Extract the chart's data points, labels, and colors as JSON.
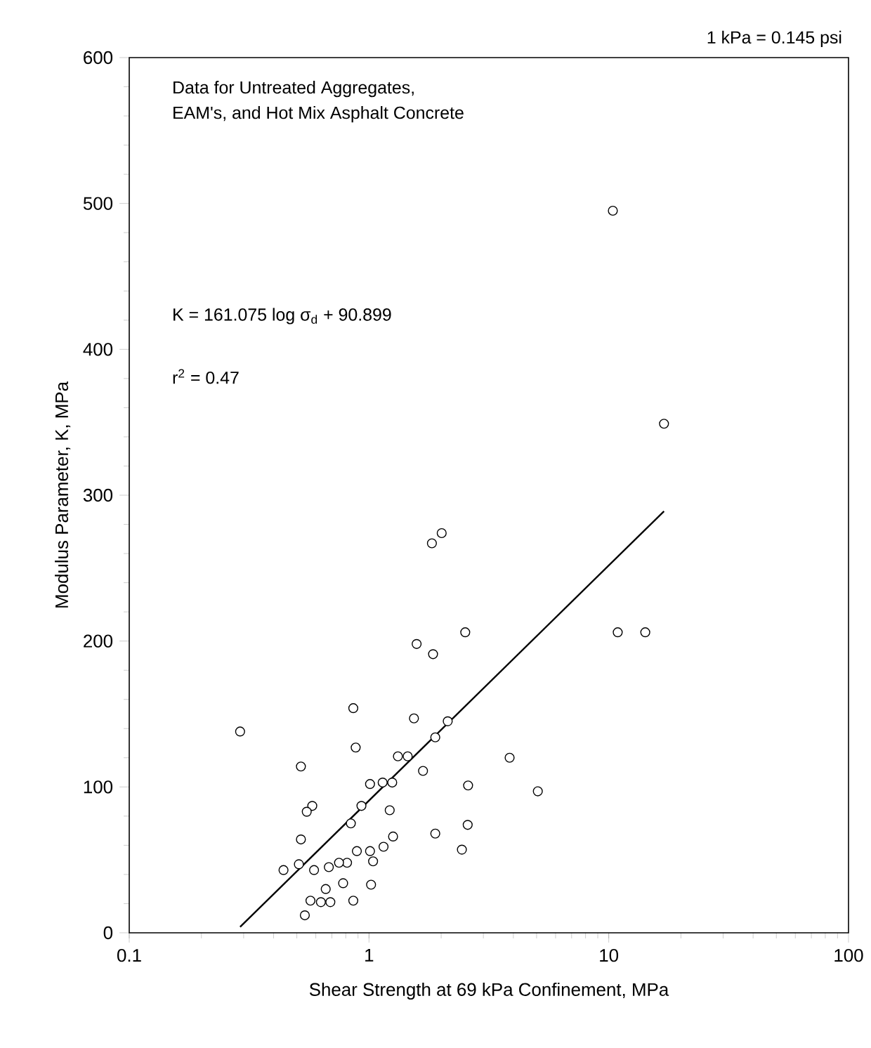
{
  "chart_data": {
    "type": "scatter",
    "xlabel": "Shear Strength at 69 kPa Confinement, MPa",
    "ylabel": "Modulus Parameter, K, MPa",
    "log": "x",
    "marker": "circle",
    "xlim": [
      0.1,
      100
    ],
    "xticks": [
      0.1,
      1,
      10,
      100
    ],
    "ylim": [
      0,
      600
    ],
    "yticks": [
      0,
      100,
      200,
      300,
      400,
      500,
      600
    ],
    "annotations": [
      "1 kPa = 0.145 psi",
      "Data for Untreated Aggregates,",
      "EAM's, and Hot Mix Asphalt Concrete",
      "K = 161.075 log σ$_{d}$ + 90.899",
      "r$^{2}$ = 0.47"
    ],
    "series": [
      {
        "color": "#000000",
        "x": [
          0.29,
          0.86,
          1.54,
          2.13,
          1.89,
          0.88,
          1.32,
          1.45,
          3.86,
          0.52,
          1.68,
          1.01,
          1.14,
          1.25,
          2.59,
          5.06,
          0.58,
          0.55,
          0.93,
          1.22,
          0.84,
          2.58,
          1.89,
          1.26,
          0.52,
          2.44,
          1.15,
          1.01,
          0.89,
          0.81,
          0.75,
          0.68,
          0.59,
          0.51,
          0.44,
          1.04,
          0.78,
          1.02,
          0.66,
          0.57,
          0.63,
          0.69,
          0.86,
          0.54,
          10.4,
          17.0,
          1.83,
          2.01,
          1.58,
          1.85,
          2.52,
          10.9,
          14.2
        ],
        "values": [
          138,
          154,
          147,
          145,
          134,
          127,
          121,
          121,
          120,
          114,
          111,
          102,
          103,
          103,
          101,
          97,
          87,
          83,
          87,
          84,
          75,
          74,
          68,
          66,
          64,
          57,
          59,
          56,
          56,
          48,
          48,
          45,
          43,
          47,
          43,
          49,
          34,
          33,
          30,
          22,
          21,
          21,
          22,
          12,
          495,
          349,
          267,
          274,
          198,
          191,
          206,
          206,
          206
        ]
      },
      {
        "type": "line",
        "color": "#000000",
        "marker": "none",
        "x": [
          0.29,
          17.0
        ],
        "values": [
          4,
          289
        ]
      }
    ]
  }
}
